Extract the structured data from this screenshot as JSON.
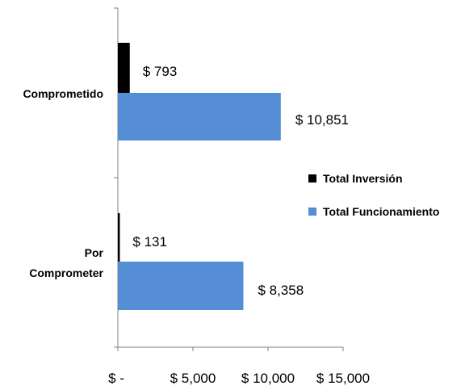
{
  "chart_data": {
    "type": "bar",
    "orientation": "horizontal",
    "categories": [
      "Comprometido",
      "Por Comprometer"
    ],
    "series": [
      {
        "name": "Total Inversión",
        "values": [
          793,
          131
        ],
        "labels": [
          "$ 793",
          "$ 131"
        ],
        "color": "#000000"
      },
      {
        "name": "Total Funcionamiento",
        "values": [
          10851,
          8358
        ],
        "labels": [
          "$ 10,851",
          "$ 8,358"
        ],
        "color": "#558ED5"
      }
    ],
    "x_ticks": [
      {
        "value": 0,
        "label": "$ -"
      },
      {
        "value": 5000,
        "label": "$ 5,000"
      },
      {
        "value": 10000,
        "label": "$ 10,000"
      },
      {
        "value": 15000,
        "label": "$ 15,000"
      }
    ],
    "xlim": [
      0,
      15000
    ],
    "grid": false,
    "legend_position": "right"
  }
}
